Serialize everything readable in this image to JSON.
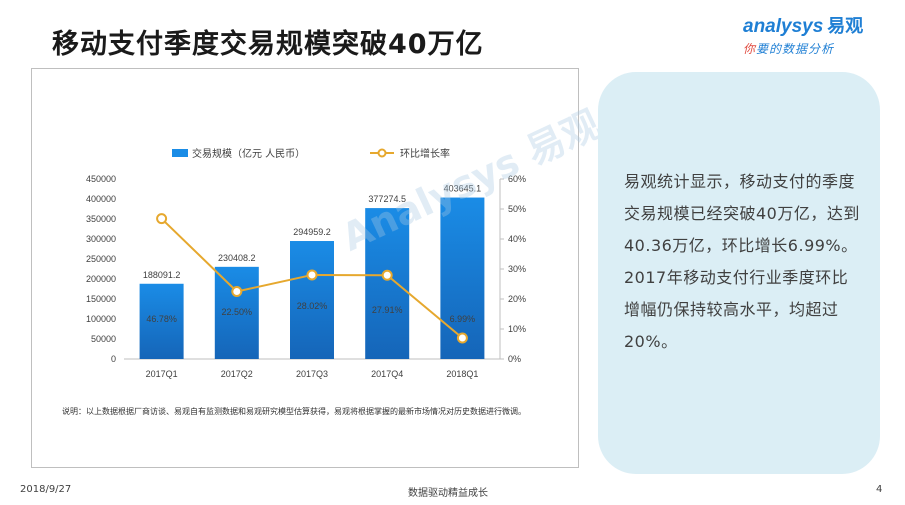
{
  "header": {
    "title": "移动支付季度交易规模突破40万亿",
    "logo": {
      "brand": "analysys",
      "brand_cn": "易观",
      "tagline_first": "你",
      "tagline_rest": "要的数据分析"
    }
  },
  "chart_data": {
    "type": "bar",
    "categories": [
      "2017Q1",
      "2017Q2",
      "2017Q3",
      "2017Q4",
      "2018Q1"
    ],
    "series": [
      {
        "name": "交易规模（亿元  人民币）",
        "type": "bar",
        "axis": "left",
        "values": [
          188091.2,
          230408.2,
          294959.2,
          377274.5,
          403645.1
        ],
        "labels": [
          "188091.2",
          "230408.2",
          "294959.2",
          "377274.5",
          "403645.1"
        ]
      },
      {
        "name": "环比增长率",
        "type": "line",
        "axis": "right",
        "values": [
          46.78,
          22.5,
          28.02,
          27.91,
          6.99
        ],
        "labels": [
          "46.78%",
          "22.50%",
          "28.02%",
          "27.91%",
          "6.99%"
        ]
      }
    ],
    "ylim_left": [
      0,
      450000
    ],
    "yticks_left": [
      "0",
      "50000",
      "100000",
      "150000",
      "200000",
      "250000",
      "300000",
      "350000",
      "400000",
      "450000"
    ],
    "ylim_right": [
      0,
      60
    ],
    "yticks_right": [
      "0%",
      "10%",
      "20%",
      "30%",
      "40%",
      "50%",
      "60%"
    ],
    "legend_position": "top",
    "grid": false,
    "colors": {
      "bar_top": "#1a8ce6",
      "bar_bottom": "#1565b8",
      "line": "#e6a82e"
    }
  },
  "chart_note": "说明：以上数据根据厂商访谈、易观自有监测数据和易观研究模型估算获得，易观将根据掌握的最新市场情况对历史数据进行微调。",
  "info": {
    "text": "易观统计显示，移动支付的季度交易规模已经突破40万亿，达到40.36万亿，环比增长6.99%。2017年移动支付行业季度环比增幅仍保持较高水平，均超过20%。"
  },
  "footer": {
    "date": "2018/9/27",
    "slogan": "数据驱动精益成长",
    "page": "4"
  }
}
